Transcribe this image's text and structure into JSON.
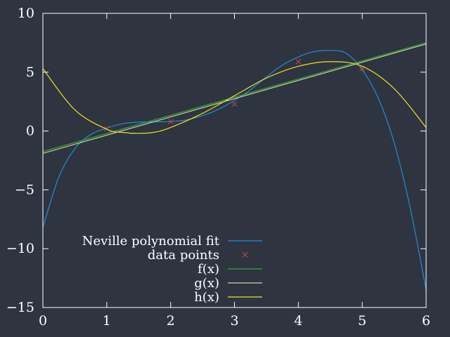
{
  "chart_data": {
    "type": "line",
    "title": "",
    "xlabel": "",
    "ylabel": "",
    "xlim": [
      0,
      6
    ],
    "ylim": [
      -15,
      10
    ],
    "x_ticks": [
      0,
      1,
      2,
      3,
      4,
      5,
      6
    ],
    "y_ticks": [
      10,
      5,
      0,
      -5,
      -10,
      -15
    ],
    "x_tick_labels": [
      "0",
      "1",
      "2",
      "3",
      "4",
      "5",
      "6"
    ],
    "y_tick_labels": [
      "10",
      "5",
      "0",
      "−5",
      "−10",
      "−15"
    ],
    "grid": false,
    "legend_position": "bottom-left",
    "background": "#2e3440",
    "series": [
      {
        "name": "Neville polynomial fit",
        "kind": "line",
        "color": "#1f8fd6",
        "x": [
          0,
          0.25,
          0.5,
          0.75,
          1,
          1.25,
          1.5,
          1.75,
          2,
          2.25,
          2.5,
          2.75,
          3,
          3.25,
          3.5,
          3.75,
          4,
          4.25,
          4.5,
          4.75,
          5,
          5.25,
          5.5,
          5.75,
          6
        ],
        "y": [
          -8.2,
          -3.9,
          -1.5,
          -0.3,
          0.25,
          0.62,
          0.75,
          0.78,
          0.8,
          0.95,
          1.3,
          1.85,
          2.6,
          3.5,
          4.6,
          5.6,
          6.3,
          6.75,
          6.85,
          6.6,
          5.2,
          2.8,
          -1.0,
          -6.5,
          -13.5
        ]
      },
      {
        "name": "data points",
        "kind": "points",
        "color": "#e04040",
        "x": [
          1,
          2,
          3,
          4,
          5
        ],
        "y": [
          0.2,
          0.8,
          2.3,
          5.9,
          5.3
        ]
      },
      {
        "name": "f(x)",
        "kind": "line",
        "color": "#3aa83a",
        "x": [
          0,
          6
        ],
        "y": [
          -1.75,
          7.5
        ]
      },
      {
        "name": "g(x)",
        "kind": "line",
        "color": "#c8d6a0",
        "x": [
          0,
          6
        ],
        "y": [
          -1.9,
          7.4
        ]
      },
      {
        "name": "h(x)",
        "kind": "line",
        "color": "#f0e020",
        "x": [
          0,
          0.5,
          1,
          1.25,
          1.5,
          1.75,
          2,
          2.5,
          3,
          3.5,
          4,
          4.5,
          5,
          5.5,
          6
        ],
        "y": [
          5.3,
          1.8,
          0.15,
          -0.12,
          -0.2,
          -0.1,
          0.3,
          1.5,
          3.0,
          4.5,
          5.5,
          5.9,
          5.5,
          3.6,
          0.3
        ]
      }
    ]
  }
}
